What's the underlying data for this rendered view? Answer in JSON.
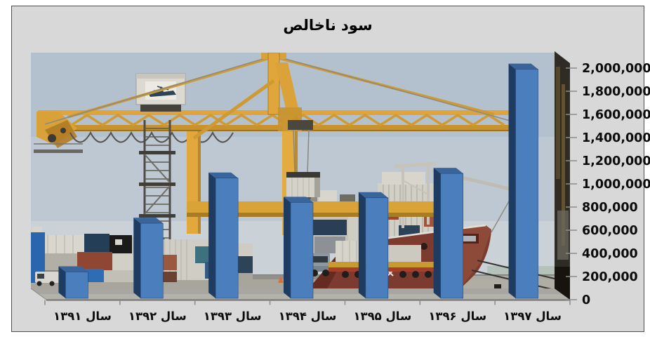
{
  "chart": {
    "title": "سود ناخالص",
    "frame_background": "#d8d8d8",
    "bar_front_color": "#4a7ebc",
    "bar_side_color": "#1e3c61",
    "bar_top_color": "#3a659b",
    "bar_edge_color": "#24497a",
    "axis_tick_color": "#8c8c8c",
    "label_color": "#0c0c0c",
    "y_axis_position": "right",
    "plot_background_description": "container-port-photo"
  },
  "chart_data": {
    "type": "bar",
    "style": "3d-column",
    "title": "سود ناخالص",
    "categories": [
      "سال ۱۳۹۱",
      "سال ۱۳۹۲",
      "سال ۱۳۹۳",
      "سال ۱۳۹۴",
      "سال ۱۳۹۵",
      "سال ۱۳۹۶",
      "سال ۱۳۹۷"
    ],
    "values": [
      240000,
      660000,
      1050000,
      840000,
      880000,
      1090000,
      1990000
    ],
    "xlabel": "",
    "ylabel": "",
    "ylim": [
      0,
      2000000
    ],
    "ytick_step": 200000,
    "ytick_labels": [
      "0",
      "200,000",
      "400,000",
      "600,000",
      "800,000",
      "1,000,000",
      "1,200,000",
      "1,400,000",
      "1,600,000",
      "1,800,000",
      "2,000,000"
    ],
    "grid": false,
    "legend": "none"
  }
}
